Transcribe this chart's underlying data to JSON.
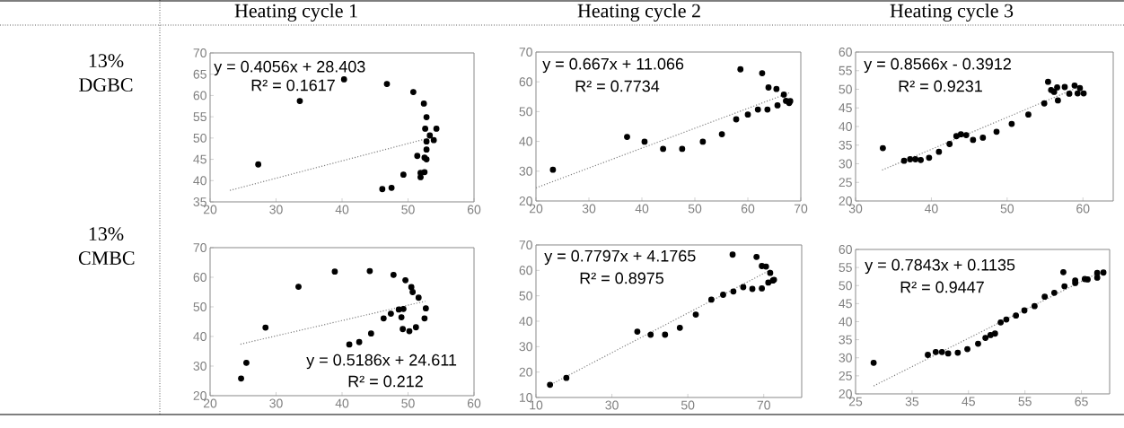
{
  "chart_data": [
    {
      "type": "scatter",
      "title": "Heating cycle 1",
      "ylabel": "13% DGBC",
      "annotations": [
        "y = 0.4056x + 28.403",
        "R² = 0.1617"
      ],
      "marker": "circle",
      "xlim": [
        20,
        60
      ],
      "ylim": [
        35,
        70
      ],
      "xticks": [
        20,
        30,
        40,
        50,
        60
      ],
      "yticks": [
        35,
        40,
        45,
        50,
        55,
        60,
        65,
        70
      ],
      "series": [
        {
          "color": "#000000",
          "x": [
            27.3,
            33.6,
            40.3,
            46.8,
            50.8,
            52.4,
            52.8,
            52.6,
            54.3,
            53.3,
            53.9,
            52.8,
            52.8,
            51.4,
            52.5,
            52.8,
            49.3,
            52.5,
            51.9,
            51.9,
            47.5,
            46.1
          ],
          "values": [
            43.8,
            58.7,
            63.8,
            62.7,
            60.8,
            58.1,
            54.9,
            52.2,
            52.2,
            50.6,
            49.5,
            49.2,
            47.3,
            45.8,
            45.4,
            45.0,
            41.4,
            42.0,
            41.8,
            40.8,
            38.3,
            38.0
          ]
        },
        {
          "type": "line",
          "color": "#808080",
          "line_style": "dotted",
          "marker": "none",
          "x": [
            23,
            53.4
          ],
          "values": [
            37.7,
            50.1
          ]
        }
      ]
    },
    {
      "type": "scatter",
      "title": "Heating cycle 2",
      "annotations": [
        "y = 0.667x + 11.066",
        "R² = 0.7734"
      ],
      "marker": "circle",
      "xlim": [
        20,
        70
      ],
      "ylim": [
        20,
        70
      ],
      "xticks": [
        20,
        30,
        40,
        50,
        60,
        70
      ],
      "yticks": [
        20,
        30,
        40,
        50,
        60,
        70
      ],
      "series": [
        {
          "color": "#000000",
          "x": [
            23.2,
            37.2,
            40.5,
            44.0,
            47.6,
            51.5,
            55.1,
            57.8,
            58.6,
            60.0,
            61.9,
            62.7,
            63.7,
            63.9,
            65.4,
            65.6,
            66.8,
            67.2,
            67.8,
            68.0
          ],
          "values": [
            30.5,
            41.5,
            39.9,
            37.5,
            37.5,
            39.9,
            42.4,
            47.4,
            64.2,
            49.0,
            50.7,
            62.9,
            50.7,
            58.1,
            57.6,
            52.1,
            55.7,
            53.6,
            52.9,
            53.5
          ]
        },
        {
          "type": "line",
          "color": "#808080",
          "line_style": "dotted",
          "marker": "none",
          "x": [
            20,
            67.8
          ],
          "values": [
            24.4,
            56.3
          ]
        }
      ]
    },
    {
      "type": "scatter",
      "title": "Heating cycle 3",
      "annotations": [
        "y = 0.8566x - 0.3912",
        "R² = 0.9231"
      ],
      "marker": "circle",
      "xlim": [
        30,
        64
      ],
      "ylim": [
        20,
        60
      ],
      "xticks": [
        30,
        40,
        50,
        60
      ],
      "yticks": [
        20,
        25,
        30,
        35,
        40,
        45,
        50,
        55,
        60
      ],
      "series": [
        {
          "color": "#000000",
          "x": [
            33.6,
            36.4,
            37.2,
            37.9,
            38.6,
            39.7,
            41.0,
            42.4,
            43.3,
            43.9,
            44.6,
            45.5,
            46.8,
            48.6,
            50.6,
            52.8,
            54.9,
            55.4,
            55.8,
            56.2,
            56.6,
            56.7,
            57.6,
            58.2,
            58.9,
            59.3,
            59.6,
            60.1
          ],
          "values": [
            34.2,
            30.8,
            31.2,
            31.2,
            31.0,
            31.6,
            33.2,
            35.3,
            37.4,
            37.9,
            37.7,
            36.4,
            37.0,
            38.6,
            40.7,
            43.2,
            46.2,
            52.0,
            49.8,
            49.3,
            50.5,
            47.0,
            50.6,
            48.8,
            51.0,
            48.9,
            50.3,
            48.9
          ]
        },
        {
          "type": "line",
          "color": "#808080",
          "line_style": "dotted",
          "marker": "none",
          "x": [
            33.5,
            59.7
          ],
          "values": [
            28.3,
            50.8
          ]
        }
      ]
    },
    {
      "type": "scatter",
      "ylabel": "13% CMBC",
      "annotations": [
        "y = 0.5186x + 24.611",
        "R² = 0.212"
      ],
      "marker": "circle",
      "xlim": [
        20,
        60
      ],
      "ylim": [
        20,
        70
      ],
      "xticks": [
        20,
        30,
        40,
        50,
        60
      ],
      "yticks": [
        20,
        30,
        40,
        50,
        60,
        70
      ],
      "series": [
        {
          "color": "#000000",
          "x": [
            24.7,
            25.5,
            28.4,
            33.4,
            38.9,
            44.2,
            47.8,
            49.6,
            50.5,
            50.7,
            51.6,
            48.6,
            49.3,
            52.7,
            47.4,
            46.3,
            49.0,
            52.5,
            49.2,
            51.2,
            50.2,
            44.4,
            42.6,
            41.1
          ],
          "values": [
            25.8,
            31.1,
            43.0,
            56.8,
            61.9,
            62.1,
            60.8,
            59.0,
            56.7,
            55.0,
            53.1,
            49.1,
            49.3,
            49.5,
            47.7,
            46.1,
            46.5,
            46.1,
            42.5,
            43.1,
            41.8,
            41.0,
            38.1,
            37.3
          ]
        },
        {
          "type": "line",
          "color": "#808080",
          "line_style": "dotted",
          "marker": "none",
          "x": [
            24.6,
            52.6
          ],
          "values": [
            37.4,
            51.9
          ]
        }
      ]
    },
    {
      "type": "scatter",
      "annotations": [
        "y = 0.7797x + 4.1765",
        "R² = 0.8975"
      ],
      "marker": "circle",
      "xlim": [
        10,
        80
      ],
      "ylim": [
        10,
        70
      ],
      "xticks": [
        10,
        30,
        50,
        70
      ],
      "yticks": [
        10,
        20,
        30,
        40,
        50,
        60,
        70
      ],
      "series": [
        {
          "color": "#000000",
          "x": [
            13.7,
            18.0,
            36.7,
            40.2,
            44.0,
            47.9,
            52.1,
            56.2,
            59.3,
            61.8,
            62.0,
            64.6,
            67.0,
            68.1,
            69.5,
            70.6,
            69.5,
            71.7,
            71.2,
            72.4,
            72.7
          ],
          "values": [
            15.0,
            17.7,
            35.9,
            34.7,
            34.7,
            37.4,
            42.6,
            48.5,
            50.4,
            66.2,
            51.7,
            53.4,
            52.7,
            65.3,
            61.7,
            61.5,
            52.9,
            59.0,
            55.2,
            56.0,
            56.3
          ]
        },
        {
          "type": "line",
          "color": "#808080",
          "line_style": "dotted",
          "marker": "none",
          "x": [
            13.3,
            71.8
          ],
          "values": [
            14.6,
            60.2
          ]
        }
      ]
    },
    {
      "type": "scatter",
      "annotations": [
        "y = 0.7843x + 0.1135",
        "R² = 0.9447"
      ],
      "marker": "circle",
      "xlim": [
        25,
        70
      ],
      "ylim": [
        20,
        60
      ],
      "xticks": [
        25,
        35,
        45,
        55,
        65
      ],
      "yticks": [
        20,
        25,
        30,
        35,
        40,
        45,
        50,
        55,
        60
      ],
      "series": [
        {
          "color": "#000000",
          "x": [
            28.2,
            37.8,
            39.2,
            40.3,
            41.4,
            43.1,
            44.8,
            46.7,
            48.0,
            48.9,
            49.7,
            50.7,
            51.7,
            53.4,
            54.9,
            56.7,
            58.5,
            60.2,
            61.8,
            62.0,
            63.9,
            63.9,
            65.6,
            66.1,
            67.8,
            67.8,
            68.9
          ],
          "values": [
            28.6,
            30.8,
            31.6,
            31.6,
            31.2,
            31.4,
            32.4,
            33.9,
            35.5,
            36.3,
            36.7,
            39.8,
            40.6,
            41.7,
            43.1,
            44.3,
            46.9,
            48.0,
            53.7,
            49.8,
            51.4,
            50.7,
            51.8,
            51.7,
            53.5,
            52.2,
            53.6
          ]
        },
        {
          "type": "line",
          "color": "#808080",
          "line_style": "dotted",
          "marker": "none",
          "x": [
            28.2,
            68.9
          ],
          "values": [
            22.2,
            54.2
          ]
        }
      ]
    }
  ]
}
